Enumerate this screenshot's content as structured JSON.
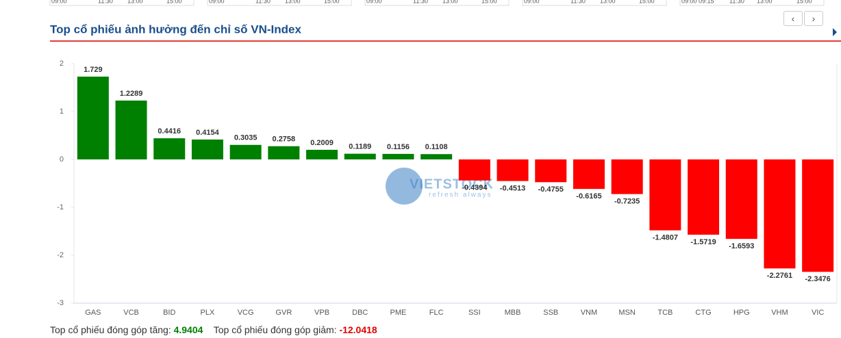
{
  "mini_charts": [
    {
      "times": [
        "09:00",
        "11:30",
        "13:00",
        "15:00"
      ]
    },
    {
      "times": [
        "09:00",
        "11:30",
        "13:00",
        "15:00"
      ]
    },
    {
      "times": [
        "09:00",
        "11:30",
        "13:00",
        "15:00"
      ]
    },
    {
      "times": [
        "09:00",
        "11:30",
        "13:00",
        "15:00"
      ]
    },
    {
      "times": [
        "09:00",
        "09:15",
        "11:30",
        "13:00",
        "15:00"
      ]
    }
  ],
  "chart_data": {
    "type": "bar",
    "title": "Top cổ phiếu ảnh hưởng đến chỉ số VN-Index",
    "categories": [
      "GAS",
      "VCB",
      "BID",
      "PLX",
      "VCG",
      "GVR",
      "VPB",
      "DBC",
      "PME",
      "FLC",
      "SSI",
      "MBB",
      "SSB",
      "VNM",
      "MSN",
      "TCB",
      "CTG",
      "HPG",
      "VHM",
      "VIC"
    ],
    "values": [
      1.729,
      1.2289,
      0.4416,
      0.4154,
      0.3035,
      0.2758,
      0.2009,
      0.1189,
      0.1156,
      0.1108,
      -0.4394,
      -0.4513,
      -0.4755,
      -0.6165,
      -0.7235,
      -1.4807,
      -1.5719,
      -1.6593,
      -2.2761,
      -2.3476
    ],
    "color_up": "#008000",
    "color_down": "#ff0000",
    "ylim": [
      -3,
      2
    ],
    "yticks": [
      -3,
      -2,
      -1,
      0,
      1,
      2
    ],
    "grid": false,
    "watermark": {
      "brand": "VIETSTOCK",
      "slogan": "refresh always"
    }
  },
  "summary": {
    "up_label": "Top cổ phiếu đóng góp tăng:",
    "up_value": 4.9404,
    "down_label": "Top cổ phiếu đóng góp giảm:",
    "down_value": -12.0418
  }
}
